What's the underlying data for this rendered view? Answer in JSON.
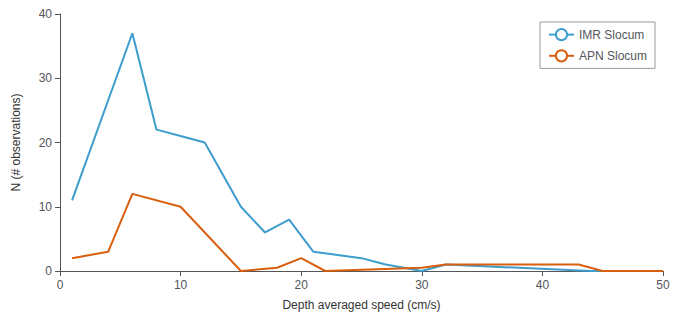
{
  "chart_data": {
    "type": "line",
    "xlabel": "Depth averaged speed (cm/s)",
    "ylabel": "N (# observations)",
    "series": [
      {
        "name": "IMR Slocum",
        "color": "#3d9dcc",
        "x": [
          1,
          6,
          8,
          10,
          12,
          15,
          17,
          19,
          21,
          25,
          27,
          30,
          32,
          44,
          50
        ],
        "values": [
          11,
          37,
          22,
          21,
          20,
          10,
          6,
          8,
          3,
          2,
          1,
          0,
          1,
          0,
          0
        ]
      },
      {
        "name": "APN Slocum",
        "color": "#d95f0e",
        "x": [
          1,
          4,
          6,
          10,
          15,
          18,
          20,
          22,
          30,
          32,
          43,
          45,
          50
        ],
        "values": [
          2,
          3,
          12,
          10,
          0,
          0.5,
          2,
          0,
          0.5,
          1,
          1,
          0,
          0
        ]
      }
    ],
    "xlim": [
      0,
      50
    ],
    "xticks": [
      0,
      10,
      20,
      30,
      40,
      50
    ],
    "ylim": [
      0,
      40
    ],
    "yticks": [
      0,
      10,
      20,
      30,
      40
    ],
    "legend": "upper right",
    "grid": false
  }
}
